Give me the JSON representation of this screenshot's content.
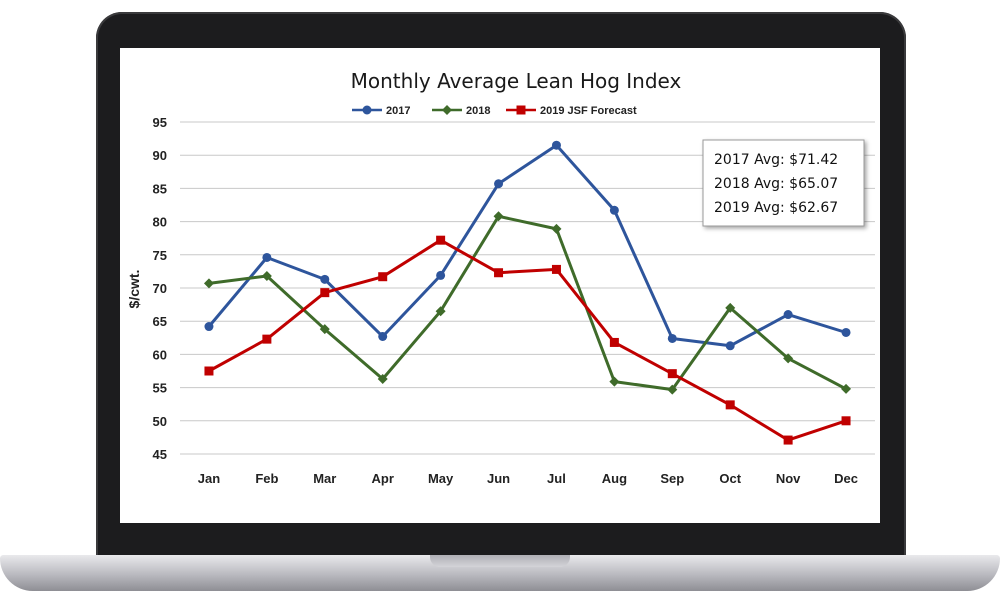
{
  "chart_data": {
    "type": "line",
    "title": "Monthly Average Lean Hog Index",
    "xlabel": "",
    "ylabel": "$/cwt.",
    "categories": [
      "Jan",
      "Feb",
      "Mar",
      "Apr",
      "May",
      "Jun",
      "Jul",
      "Aug",
      "Sep",
      "Oct",
      "Nov",
      "Dec"
    ],
    "ylim": [
      45,
      95
    ],
    "yticks": [
      "95",
      "90",
      "85",
      "80",
      "75",
      "70",
      "65",
      "60",
      "55",
      "50",
      "45"
    ],
    "grid": true,
    "legend_position": "top",
    "series": [
      {
        "name": "2017",
        "color": "#2e559c",
        "marker": "circle",
        "values": [
          64.2,
          74.6,
          71.3,
          62.7,
          71.9,
          85.7,
          91.5,
          81.7,
          62.4,
          61.3,
          66.0,
          63.3
        ]
      },
      {
        "name": "2018",
        "color": "#3f6b2a",
        "marker": "diamond",
        "values": [
          70.7,
          71.8,
          63.8,
          56.3,
          66.5,
          80.8,
          78.9,
          55.9,
          54.7,
          67.0,
          59.4,
          54.8
        ]
      },
      {
        "name": "2019 JSF Forecast",
        "color": "#c00000",
        "marker": "square",
        "values": [
          57.5,
          62.3,
          69.3,
          71.7,
          77.2,
          72.3,
          72.8,
          61.8,
          57.1,
          52.4,
          47.1,
          50.0
        ]
      }
    ],
    "annotations": [
      "2017 Avg: $71.42",
      "2018 Avg: $65.07",
      "2019 Avg: $62.67"
    ]
  }
}
